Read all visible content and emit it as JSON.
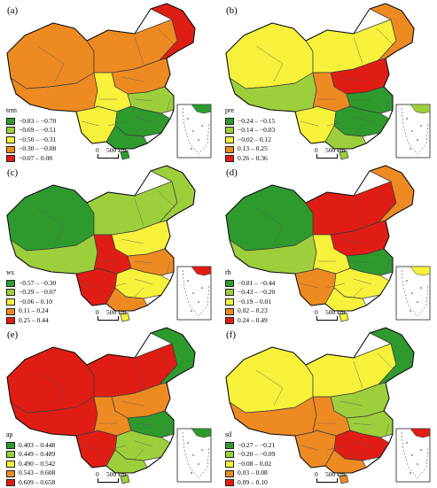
{
  "colors": {
    "dark_green": "#2e9a2e",
    "light_green": "#9dcf3c",
    "yellow": "#f6f13a",
    "orange": "#ee8a22",
    "red": "#e01d14",
    "boundary": "#3a3a3a"
  },
  "scale": {
    "zero": "0",
    "distance": "500 km"
  },
  "panels": [
    {
      "label": "(a)",
      "var": "tem",
      "legend": [
        "−0.83 – −0.70",
        "−0.69 – −0.51",
        "−0.50 – −0.31",
        "−0.30 – −0.08",
        "−0.07 – 0.08"
      ],
      "colors": [
        "#2e9a2e",
        "#9dcf3c",
        "#f6f13a",
        "#ee8a22",
        "#e01d14"
      ],
      "regions": {
        "xinjiang": "#ee8a22",
        "tibet": "#ee8a22",
        "inner_mongolia": "#ee8a22",
        "northeast": "#e01d14",
        "north": "#ee8a22",
        "central": "#f6f13a",
        "southwest": "#f6f13a",
        "southeast": "#2e9a2e",
        "east": "#9dcf3c",
        "south": "#2e9a2e",
        "hainan": "#2e9a2e",
        "inset": "#2e9a2e"
      }
    },
    {
      "label": "(b)",
      "var": "pre",
      "legend": [
        "−0.24 – −0.15",
        "−0.14 – −0.03",
        "−0.02 – 0.12",
        "0.13 – 0.25",
        "0.26 – 0.36"
      ],
      "colors": [
        "#2e9a2e",
        "#9dcf3c",
        "#f6f13a",
        "#ee8a22",
        "#e01d14"
      ],
      "regions": {
        "xinjiang": "#f6f13a",
        "tibet": "#9dcf3c",
        "inner_mongolia": "#f6f13a",
        "northeast": "#ee8a22",
        "north": "#e01d14",
        "central": "#ee8a22",
        "southwest": "#f6f13a",
        "southeast": "#2e9a2e",
        "east": "#2e9a2e",
        "south": "#9dcf3c",
        "hainan": "#9dcf3c",
        "inset": "#9dcf3c"
      }
    },
    {
      "label": "(c)",
      "var": "ws",
      "legend": [
        "−0.57 – −0.30",
        "−0.29 – −0.07",
        "−0.06 – 0.10",
        "0.11 – 0.24",
        "0.25 – 0.44"
      ],
      "colors": [
        "#2e9a2e",
        "#9dcf3c",
        "#f6f13a",
        "#ee8a22",
        "#e01d14"
      ],
      "regions": {
        "xinjiang": "#2e9a2e",
        "tibet": "#9dcf3c",
        "inner_mongolia": "#9dcf3c",
        "northeast": "#9dcf3c",
        "north": "#f6f13a",
        "central": "#e01d14",
        "southwest": "#e01d14",
        "southeast": "#f6f13a",
        "east": "#ee8a22",
        "south": "#ee8a22",
        "hainan": "#f6f13a",
        "inset": "#e01d14"
      }
    },
    {
      "label": "(d)",
      "var": "rh",
      "legend": [
        "−0.81 – −0.44",
        "−0.43 – −0.20",
        "−0.19 – 0.01",
        "0.02 – 0.23",
        "0.24 – 0.49"
      ],
      "colors": [
        "#2e9a2e",
        "#9dcf3c",
        "#f6f13a",
        "#ee8a22",
        "#e01d14"
      ],
      "regions": {
        "xinjiang": "#2e9a2e",
        "tibet": "#9dcf3c",
        "inner_mongolia": "#e01d14",
        "northeast": "#ee8a22",
        "north": "#e01d14",
        "central": "#f6f13a",
        "southwest": "#ee8a22",
        "southeast": "#f6f13a",
        "east": "#2e9a2e",
        "south": "#f6f13a",
        "hainan": "#f6f13a",
        "inset": "#f6f13a"
      }
    },
    {
      "label": "(e)",
      "var": "ap",
      "legend": [
        "0.403 – 0.448",
        "0.449 – 0.489",
        "0.490 – 0.542",
        "0.543 – 0.608",
        "0.609 – 0.658"
      ],
      "colors": [
        "#2e9a2e",
        "#9dcf3c",
        "#f6f13a",
        "#ee8a22",
        "#e01d14"
      ],
      "regions": {
        "xinjiang": "#e01d14",
        "tibet": "#e01d14",
        "inner_mongolia": "#e01d14",
        "northeast": "#2e9a2e",
        "north": "#ee8a22",
        "central": "#ee8a22",
        "southwest": "#e01d14",
        "southeast": "#9dcf3c",
        "east": "#2e9a2e",
        "south": "#9dcf3c",
        "hainan": "#9dcf3c",
        "inset": "#2e9a2e"
      }
    },
    {
      "label": "(f)",
      "var": "sd",
      "legend": [
        "−0.27 – −0.21",
        "−0.20 – −0.09",
        "−0.08 – 0.02",
        "0.03 – 0.08",
        "0.09 – 0.10"
      ],
      "colors": [
        "#2e9a2e",
        "#9dcf3c",
        "#f6f13a",
        "#ee8a22",
        "#e01d14"
      ],
      "regions": {
        "xinjiang": "#f6f13a",
        "tibet": "#ee8a22",
        "inner_mongolia": "#f6f13a",
        "northeast": "#2e9a2e",
        "north": "#9dcf3c",
        "central": "#ee8a22",
        "southwest": "#ee8a22",
        "southeast": "#e01d14",
        "east": "#9dcf3c",
        "south": "#ee8a22",
        "hainan": "#ee8a22",
        "inset": "#e01d14"
      }
    }
  ]
}
